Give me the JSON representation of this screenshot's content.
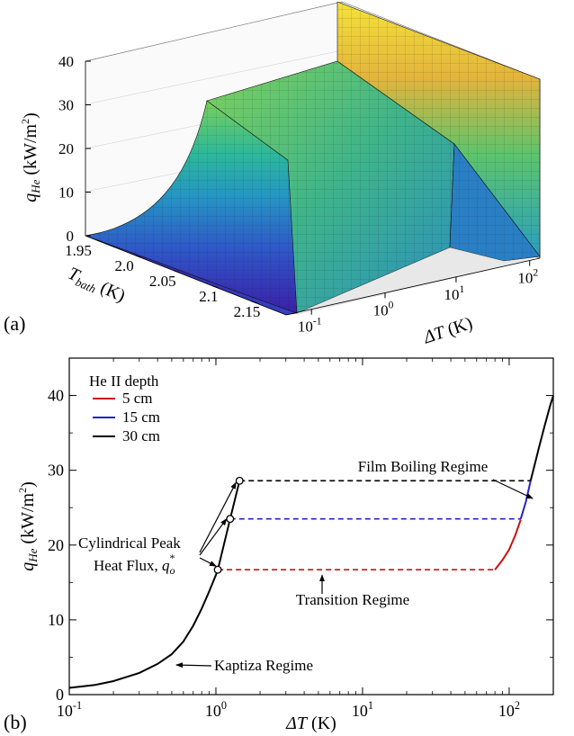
{
  "chart_data": [
    {
      "panel": "(a)",
      "type": "surface",
      "zlabel": "qHe (kW/m²)",
      "ylabel": "Tbath (K)",
      "xlabel": "ΔT (K)",
      "z_ticks": [
        "0",
        "10",
        "20",
        "30",
        "40"
      ],
      "tbath_ticks": [
        "1.95",
        "2.0",
        "2.05",
        "2.1",
        "2.15"
      ],
      "dt_ticks": [
        {
          "b": "10",
          "e": "-1"
        },
        {
          "b": "10",
          "e": "0"
        },
        {
          "b": "10",
          "e": "1"
        },
        {
          "b": "10",
          "e": "2"
        }
      ],
      "xlim": [
        0.1,
        200
      ],
      "ylim": [
        1.92,
        2.17
      ],
      "zlim": [
        0,
        40
      ],
      "colormap": [
        "#3b1fa8",
        "#2f57c8",
        "#2596c3",
        "#2cb89a",
        "#79d05a",
        "#e2c43a",
        "#f2e33a"
      ],
      "mesh_color": "#1a1a1a",
      "peak_flux_at_1_95K": 26.5,
      "peak_flux_at_2_15K": 6.0
    },
    {
      "panel": "(b)",
      "type": "line",
      "xlabel": "ΔT (K)",
      "ylabel": "qHe (kW/m²)",
      "xscale": "log",
      "xlim": [
        0.1,
        200
      ],
      "ylim": [
        0,
        45
      ],
      "x_ticks": [
        {
          "b": "10",
          "e": "-1",
          "v": 0.1
        },
        {
          "b": "10",
          "e": "0",
          "v": 1
        },
        {
          "b": "10",
          "e": "1",
          "v": 10
        },
        {
          "b": "10",
          "e": "2",
          "v": 100
        }
      ],
      "y_ticks": [
        0,
        10,
        20,
        30,
        40
      ],
      "legend": {
        "title": "He II depth",
        "position": "top-left"
      },
      "kapitza": {
        "x": [
          0.1,
          0.15,
          0.2,
          0.3,
          0.4,
          0.5,
          0.6,
          0.7,
          0.8,
          0.9,
          1.0,
          1.03
        ],
        "y": [
          0.9,
          1.3,
          1.8,
          2.9,
          4.1,
          5.4,
          7.1,
          9.2,
          11.5,
          13.8,
          16.0,
          16.7
        ]
      },
      "film_boiling": {
        "x": [
          80,
          90,
          100,
          110,
          120,
          130,
          140,
          150,
          160,
          175,
          190,
          200
        ],
        "y": [
          16.7,
          18.0,
          19.4,
          21.3,
          23.4,
          25.8,
          28.6,
          30.9,
          33.1,
          36.0,
          38.6,
          40.0
        ]
      },
      "series": [
        {
          "name": "5 cm",
          "color": "#cc1111",
          "peak_x": 1.03,
          "peak_y": 16.7,
          "boil_x": 80
        },
        {
          "name": "15 cm",
          "color": "#2222cc",
          "peak_x": 1.25,
          "peak_y": 23.5,
          "boil_x": 120
        },
        {
          "name": "30 cm",
          "color": "#000000",
          "peak_x": 1.45,
          "peak_y": 28.6,
          "boil_x": 140
        }
      ],
      "annotations": {
        "peak_line1": "Cylindrical Peak",
        "peak_line2": "Heat Flux, ",
        "peak_sym": "q",
        "peak_sub": "o",
        "peak_sup": "*",
        "film": "Film Boiling Regime",
        "transition": "Transition Regime",
        "kapitza": "Kaptiza Regime"
      }
    }
  ],
  "labels": {
    "panel_a": "(a)",
    "panel_b": "(b)",
    "q_sym": "q",
    "q_sub": "He",
    "q_unit": " (kW/m",
    "q_unit_sup": "2",
    "q_unit_close": ")",
    "t_sym": "T",
    "t_sub": "bath",
    "t_unit": " (K)",
    "dt_sym": "ΔT",
    "dt_unit": " (K)"
  }
}
